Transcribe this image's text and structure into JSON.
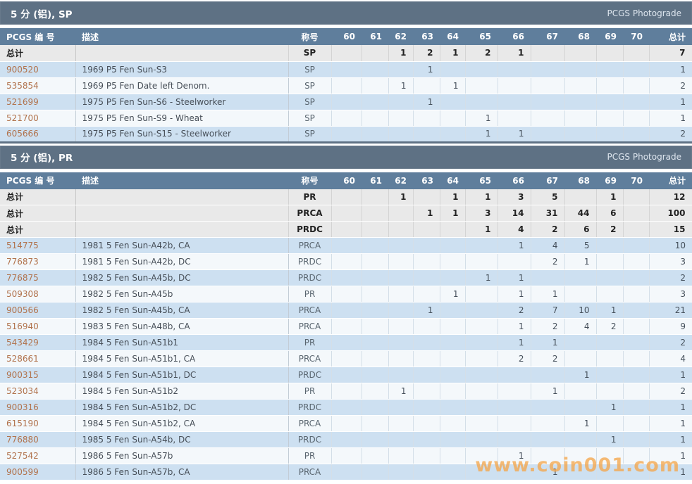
{
  "watermark": "www.coin001.com",
  "columns": {
    "pcgs": "PCGS 编 号",
    "desc": "描述",
    "designation": "称号",
    "grades": [
      "60",
      "61",
      "62",
      "63",
      "64",
      "65",
      "66",
      "67",
      "68",
      "69",
      "70"
    ],
    "total": "总计",
    "total_row_label": "总计"
  },
  "colors": {
    "title_bar": "#5e7184",
    "header_row": "#5f7e9c",
    "total_row_bg": "#e9e9e9",
    "row_blue": "#cde0f1",
    "row_white": "#f4f8fb",
    "pcgs_link": "#b1734d",
    "watermark_orange": "#f3a64d"
  },
  "sections": [
    {
      "title": "5 分 (铝), SP",
      "photograde": "PCGS Photograde",
      "total_rows": [
        {
          "designation": "SP",
          "cells": [
            "",
            "",
            "1",
            "2",
            "1",
            "2",
            "1",
            "",
            "",
            "",
            ""
          ],
          "total": "7"
        }
      ],
      "rows": [
        {
          "pcgs": "900520",
          "desc": "1969 P5 Fen Sun-S3",
          "designation": "SP",
          "cells": [
            "",
            "",
            "",
            "1",
            "",
            "",
            "",
            "",
            "",
            "",
            ""
          ],
          "total": "1"
        },
        {
          "pcgs": "535854",
          "desc": "1969 P5 Fen Date left Denom.",
          "designation": "SP",
          "cells": [
            "",
            "",
            "1",
            "",
            "1",
            "",
            "",
            "",
            "",
            "",
            ""
          ],
          "total": "2"
        },
        {
          "pcgs": "521699",
          "desc": "1975 P5 Fen Sun-S6 - Steelworker",
          "designation": "SP",
          "cells": [
            "",
            "",
            "",
            "1",
            "",
            "",
            "",
            "",
            "",
            "",
            ""
          ],
          "total": "1"
        },
        {
          "pcgs": "521700",
          "desc": "1975 P5 Fen Sun-S9 - Wheat",
          "designation": "SP",
          "cells": [
            "",
            "",
            "",
            "",
            "",
            "1",
            "",
            "",
            "",
            "",
            ""
          ],
          "total": "1"
        },
        {
          "pcgs": "605666",
          "desc": "1975 P5 Fen Sun-S15 - Steelworker",
          "designation": "SP",
          "cells": [
            "",
            "",
            "",
            "",
            "",
            "1",
            "1",
            "",
            "",
            "",
            ""
          ],
          "total": "2"
        }
      ]
    },
    {
      "title": "5 分 (铝), PR",
      "photograde": "PCGS Photograde",
      "total_rows": [
        {
          "designation": "PR",
          "cells": [
            "",
            "",
            "1",
            "",
            "1",
            "1",
            "3",
            "5",
            "",
            "1",
            ""
          ],
          "total": "12"
        },
        {
          "designation": "PRCA",
          "cells": [
            "",
            "",
            "",
            "1",
            "1",
            "3",
            "14",
            "31",
            "44",
            "6",
            ""
          ],
          "total": "100"
        },
        {
          "designation": "PRDC",
          "cells": [
            "",
            "",
            "",
            "",
            "",
            "1",
            "4",
            "2",
            "6",
            "2",
            ""
          ],
          "total": "15"
        }
      ],
      "rows": [
        {
          "pcgs": "514775",
          "desc": "1981 5 Fen Sun-A42b, CA",
          "designation": "PRCA",
          "cells": [
            "",
            "",
            "",
            "",
            "",
            "",
            "1",
            "4",
            "5",
            "",
            ""
          ],
          "total": "10"
        },
        {
          "pcgs": "776873",
          "desc": "1981 5 Fen Sun-A42b, DC",
          "designation": "PRDC",
          "cells": [
            "",
            "",
            "",
            "",
            "",
            "",
            "",
            "2",
            "1",
            "",
            ""
          ],
          "total": "3"
        },
        {
          "pcgs": "776875",
          "desc": "1982 5 Fen Sun-A45b, DC",
          "designation": "PRDC",
          "cells": [
            "",
            "",
            "",
            "",
            "",
            "1",
            "1",
            "",
            "",
            "",
            ""
          ],
          "total": "2"
        },
        {
          "pcgs": "509308",
          "desc": "1982 5 Fen Sun-A45b",
          "designation": "PR",
          "cells": [
            "",
            "",
            "",
            "",
            "1",
            "",
            "1",
            "1",
            "",
            "",
            ""
          ],
          "total": "3"
        },
        {
          "pcgs": "900566",
          "desc": "1982 5 Fen Sun-A45b, CA",
          "designation": "PRCA",
          "cells": [
            "",
            "",
            "",
            "1",
            "",
            "",
            "2",
            "7",
            "10",
            "1",
            ""
          ],
          "total": "21"
        },
        {
          "pcgs": "516940",
          "desc": "1983 5 Fen Sun-A48b, CA",
          "designation": "PRCA",
          "cells": [
            "",
            "",
            "",
            "",
            "",
            "",
            "1",
            "2",
            "4",
            "2",
            ""
          ],
          "total": "9"
        },
        {
          "pcgs": "543429",
          "desc": "1984 5 Fen Sun-A51b1",
          "designation": "PR",
          "cells": [
            "",
            "",
            "",
            "",
            "",
            "",
            "1",
            "1",
            "",
            "",
            ""
          ],
          "total": "2"
        },
        {
          "pcgs": "528661",
          "desc": "1984 5 Fen Sun-A51b1, CA",
          "designation": "PRCA",
          "cells": [
            "",
            "",
            "",
            "",
            "",
            "",
            "2",
            "2",
            "",
            "",
            ""
          ],
          "total": "4"
        },
        {
          "pcgs": "900315",
          "desc": "1984 5 Fen Sun-A51b1, DC",
          "designation": "PRDC",
          "cells": [
            "",
            "",
            "",
            "",
            "",
            "",
            "",
            "",
            "1",
            "",
            ""
          ],
          "total": "1"
        },
        {
          "pcgs": "523034",
          "desc": "1984 5 Fen Sun-A51b2",
          "designation": "PR",
          "cells": [
            "",
            "",
            "1",
            "",
            "",
            "",
            "",
            "1",
            "",
            "",
            ""
          ],
          "total": "2"
        },
        {
          "pcgs": "900316",
          "desc": "1984 5 Fen Sun-A51b2, DC",
          "designation": "PRDC",
          "cells": [
            "",
            "",
            "",
            "",
            "",
            "",
            "",
            "",
            "",
            "1",
            ""
          ],
          "total": "1"
        },
        {
          "pcgs": "615190",
          "desc": "1984 5 Fen Sun-A51b2, CA",
          "designation": "PRCA",
          "cells": [
            "",
            "",
            "",
            "",
            "",
            "",
            "",
            "",
            "1",
            "",
            ""
          ],
          "total": "1"
        },
        {
          "pcgs": "776880",
          "desc": "1985 5 Fen Sun-A54b, DC",
          "designation": "PRDC",
          "cells": [
            "",
            "",
            "",
            "",
            "",
            "",
            "",
            "",
            "",
            "1",
            ""
          ],
          "total": "1"
        },
        {
          "pcgs": "527542",
          "desc": "1986 5 Fen Sun-A57b",
          "designation": "PR",
          "cells": [
            "",
            "",
            "",
            "",
            "",
            "",
            "1",
            "",
            "",
            "",
            ""
          ],
          "total": "1"
        },
        {
          "pcgs": "900599",
          "desc": "1986 5 Fen Sun-A57b, CA",
          "designation": "PRCA",
          "cells": [
            "",
            "",
            "",
            "",
            "",
            "",
            "",
            "1",
            "",
            "",
            ""
          ],
          "total": "1"
        }
      ]
    }
  ]
}
